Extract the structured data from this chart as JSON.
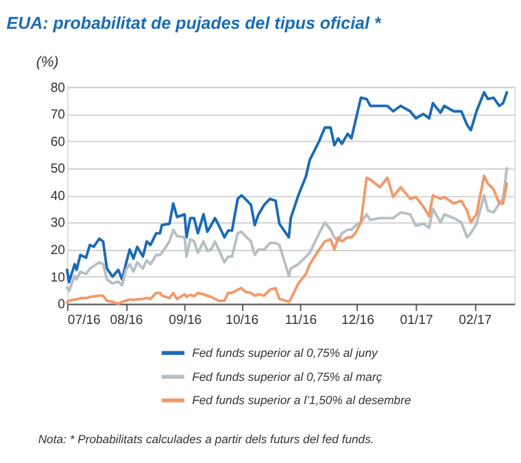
{
  "chart_data": {
    "type": "line",
    "title": "EUA: probabilitat de pujades del tipus oficial *",
    "ylabel": "(%)",
    "x": [
      "2016-07-01",
      "2016-07-02",
      "2016-07-05",
      "2016-07-06",
      "2016-07-08",
      "2016-07-11",
      "2016-07-13",
      "2016-07-15",
      "2016-07-18",
      "2016-07-20",
      "2016-07-22",
      "2016-07-25",
      "2016-07-28",
      "2016-07-30",
      "2016-08-01",
      "2016-08-03",
      "2016-08-05",
      "2016-08-07",
      "2016-08-10",
      "2016-08-12",
      "2016-08-14",
      "2016-08-17",
      "2016-08-19",
      "2016-08-20",
      "2016-08-24",
      "2016-08-26",
      "2016-08-28",
      "2016-09-01",
      "2016-09-02",
      "2016-09-04",
      "2016-09-06",
      "2016-09-08",
      "2016-09-11",
      "2016-09-13",
      "2016-09-15",
      "2016-09-17",
      "2016-09-19",
      "2016-09-22",
      "2016-09-24",
      "2016-09-26",
      "2016-09-29",
      "2016-10-01",
      "2016-10-03",
      "2016-10-06",
      "2016-10-08",
      "2016-10-10",
      "2016-10-13",
      "2016-10-16",
      "2016-10-19",
      "2016-10-21",
      "2016-10-26",
      "2016-10-27",
      "2016-10-31",
      "2016-11-04",
      "2016-11-06",
      "2016-11-11",
      "2016-11-14",
      "2016-11-17",
      "2016-11-19",
      "2016-11-21",
      "2016-11-23",
      "2016-11-26",
      "2016-11-28",
      "2016-11-30",
      "2016-12-03",
      "2016-12-06",
      "2016-12-08",
      "2016-12-13",
      "2016-12-17",
      "2016-12-20",
      "2016-12-24",
      "2016-12-29",
      "2017-01-01",
      "2017-01-05",
      "2017-01-08",
      "2017-01-10",
      "2017-01-14",
      "2017-01-16",
      "2017-01-21",
      "2017-01-25",
      "2017-01-28",
      "2017-01-30",
      "2017-02-02",
      "2017-02-06",
      "2017-02-08",
      "2017-02-11",
      "2017-02-14",
      "2017-02-16",
      "2017-02-18"
    ],
    "series": [
      {
        "name": "Fed funds superior al 0,75% al juny",
        "color": "#1a6bb5",
        "values": [
          12.5,
          8,
          14.6,
          12.5,
          18,
          17,
          21.7,
          21,
          24,
          23,
          13,
          10,
          12.5,
          9,
          14.6,
          20,
          16.7,
          21,
          17.4,
          23,
          21.7,
          26,
          26,
          29,
          29.5,
          37,
          32,
          33,
          24.5,
          31.6,
          31.6,
          26,
          33,
          26.6,
          29,
          31.6,
          29,
          24.5,
          27,
          27,
          38.7,
          40,
          38.7,
          36.5,
          29,
          33,
          36.5,
          38.7,
          38,
          29.5,
          24.5,
          31.6,
          40,
          47,
          53,
          60,
          65,
          65,
          58.5,
          61,
          59,
          62.7,
          61,
          67,
          76,
          75.5,
          73,
          73,
          73,
          71,
          73,
          71,
          68.4,
          70,
          68.4,
          74,
          70.5,
          73,
          71,
          71,
          66,
          64,
          71,
          78,
          75.5,
          76,
          73,
          74,
          78
        ]
      },
      {
        "name": "Fed funds superior al 0,75% al març",
        "color": "#b5bfc4",
        "values": [
          6,
          4.7,
          10.3,
          9,
          11.8,
          11,
          13,
          13.9,
          15.3,
          14.6,
          9,
          7.5,
          8.2,
          6.8,
          12.5,
          14.6,
          11.8,
          15.3,
          13,
          16,
          14.6,
          18,
          18,
          18.8,
          23,
          27.3,
          25,
          24.5,
          17.4,
          23.8,
          23,
          18.8,
          23,
          19.5,
          20,
          23,
          20,
          15.3,
          17.4,
          17.4,
          26,
          26.6,
          25,
          23,
          18,
          20,
          20,
          22.4,
          22.4,
          21.7,
          10.3,
          13,
          14.6,
          17.4,
          18.8,
          26,
          30,
          27.3,
          24.5,
          23,
          26,
          27.3,
          27.3,
          28.8,
          30,
          33,
          30.9,
          31.6,
          31.6,
          31.6,
          33.7,
          33,
          28.8,
          29.5,
          28,
          35,
          30,
          33,
          31.6,
          30,
          24.5,
          26,
          29.5,
          40,
          34.4,
          33.7,
          37,
          38.7,
          50
        ]
      },
      {
        "name": "Fed funds superior a l’1,50% al desembre",
        "color": "#f2996a",
        "values": [
          0.4,
          1.1,
          1.6,
          1.6,
          2.1,
          2.1,
          2.5,
          2.7,
          3,
          3,
          1.1,
          0.7,
          0,
          0.7,
          1.1,
          1.6,
          1.4,
          1.6,
          1.8,
          2.1,
          1.8,
          4,
          4,
          3,
          2.1,
          4,
          1.8,
          3.5,
          2.5,
          3.3,
          2.8,
          4,
          3.5,
          3,
          2.5,
          1.8,
          1.1,
          1.1,
          4,
          4,
          5.2,
          5.8,
          4.4,
          4,
          3,
          3.5,
          3,
          5.2,
          5.7,
          1.8,
          0.7,
          1.8,
          7.5,
          11,
          14.6,
          20,
          23,
          23.8,
          20,
          24.5,
          23,
          24.5,
          24.5,
          26,
          30,
          46.5,
          45.8,
          43,
          46.5,
          39.4,
          43,
          38.7,
          39.4,
          35.8,
          32.3,
          40,
          38.7,
          39.4,
          37,
          38,
          34.4,
          30,
          33,
          47.2,
          44.3,
          42.2,
          37,
          37,
          44.3
        ]
      }
    ],
    "xlim": [
      "2016-07-01",
      "2017-02-22"
    ],
    "xticks": [
      {
        "value": "2016-07-01",
        "label": "07/16"
      },
      {
        "value": "2016-08-01",
        "label": "08/16"
      },
      {
        "value": "2016-09-01",
        "label": "09/16"
      },
      {
        "value": "2016-10-01",
        "label": "10/16"
      },
      {
        "value": "2016-11-01",
        "label": "11/16"
      },
      {
        "value": "2016-12-01",
        "label": "12/16"
      },
      {
        "value": "2017-01-01",
        "label": "01/17"
      },
      {
        "value": "2017-02-01",
        "label": "02/17"
      }
    ],
    "ylim": [
      0,
      80
    ],
    "yticks": [
      0,
      10,
      20,
      30,
      40,
      50,
      60,
      70,
      80
    ],
    "grid": "y",
    "legend": "bottom",
    "annotations": [
      "Nota: * Probabilitats calculades a partir dels futurs del fed funds."
    ]
  }
}
